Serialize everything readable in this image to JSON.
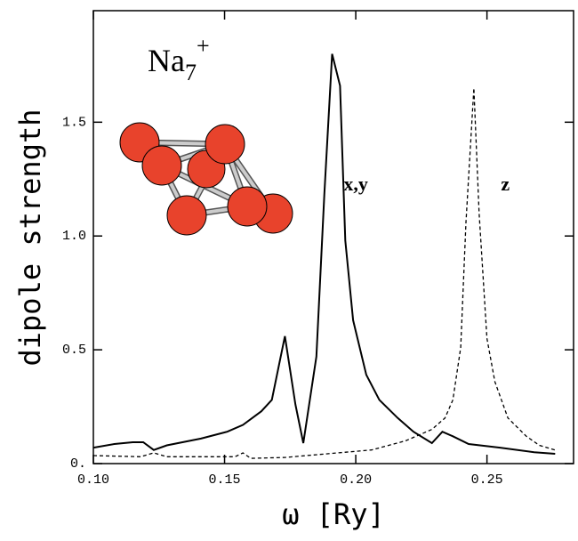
{
  "chart_data": {
    "type": "line",
    "title": {
      "base": "Na",
      "sub": "7",
      "sup": "+"
    },
    "x_label": "ω [Ry]",
    "y_label": "dipole strength",
    "xlim": [
      0.1,
      0.283
    ],
    "ylim": [
      0,
      1.99
    ],
    "xticks": [
      {
        "value": 0.1,
        "label": "0.10"
      },
      0.15,
      {
        "value": 0.2,
        "label": "0.20"
      },
      0.25
    ],
    "yticks": [
      {
        "value": 0,
        "label": "0."
      },
      0.5,
      {
        "value": 1,
        "label": "1.0"
      },
      1.5
    ],
    "annotations": [
      {
        "text": "x,y",
        "x": 0.2,
        "y": 1.22
      },
      {
        "text": "z",
        "x": 0.257,
        "y": 1.22
      }
    ],
    "series": [
      {
        "name": "x,y",
        "color": "#000000",
        "dash": false,
        "x": [
          0.1,
          0.108,
          0.115,
          0.119,
          0.123,
          0.128,
          0.141,
          0.151,
          0.157,
          0.164,
          0.168,
          0.173,
          0.177,
          0.18,
          0.185,
          0.188,
          0.191,
          0.194,
          0.196,
          0.199,
          0.204,
          0.209,
          0.216,
          0.222,
          0.229,
          0.233,
          0.237,
          0.243,
          0.255,
          0.268,
          0.276
        ],
        "values": [
          0.07,
          0.086,
          0.094,
          0.094,
          0.06,
          0.08,
          0.11,
          0.14,
          0.17,
          0.23,
          0.28,
          0.56,
          0.26,
          0.09,
          0.47,
          1.18,
          1.8,
          1.66,
          0.98,
          0.63,
          0.39,
          0.28,
          0.2,
          0.14,
          0.09,
          0.14,
          0.12,
          0.086,
          0.07,
          0.05,
          0.043
        ]
      },
      {
        "name": "z",
        "color": "#000000",
        "dash": true,
        "x": [
          0.1,
          0.118,
          0.123,
          0.128,
          0.154,
          0.157,
          0.16,
          0.173,
          0.193,
          0.206,
          0.219,
          0.229,
          0.234,
          0.237,
          0.24,
          0.242,
          0.245,
          0.247,
          0.25,
          0.253,
          0.258,
          0.265,
          0.27,
          0.276
        ],
        "values": [
          0.035,
          0.03,
          0.047,
          0.03,
          0.03,
          0.047,
          0.023,
          0.027,
          0.047,
          0.06,
          0.1,
          0.15,
          0.2,
          0.28,
          0.51,
          1.06,
          1.65,
          1.1,
          0.55,
          0.36,
          0.2,
          0.12,
          0.08,
          0.06
        ]
      }
    ]
  }
}
